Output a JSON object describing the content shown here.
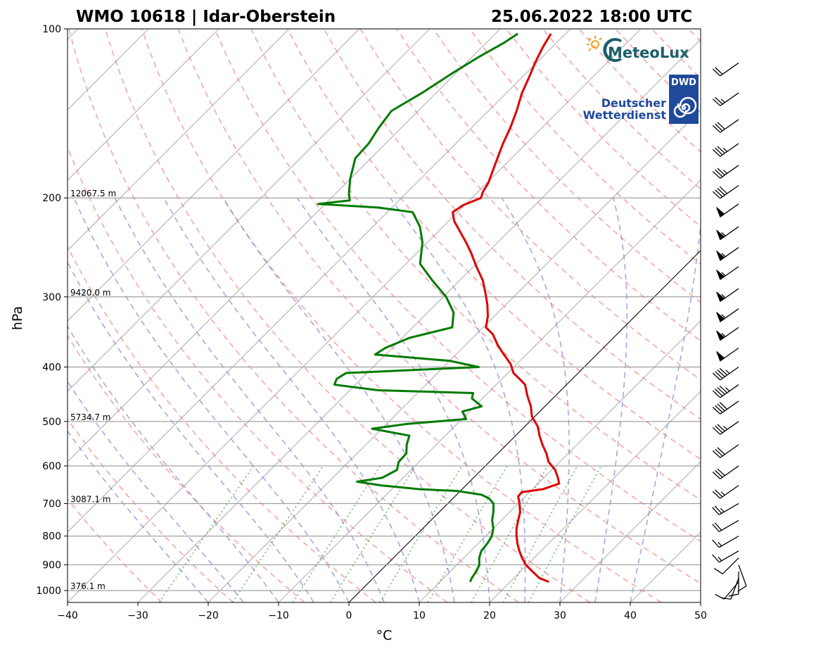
{
  "chart_data": {
    "type": "line",
    "title_left": "WMO 10618 | Idar-Oberstein",
    "title_right": "25.06.2022 18:00 UTC",
    "xlabel": "°C",
    "ylabel": "hPa",
    "xlim": [
      -40,
      50
    ],
    "ylim": [
      1050,
      100
    ],
    "x_ticks": [
      -40,
      -30,
      -20,
      -10,
      0,
      10,
      20,
      30,
      40,
      50
    ],
    "x_tick_labels": [
      "−40",
      "−30",
      "−20",
      "−10",
      "0",
      "10",
      "20",
      "30",
      "40",
      "50"
    ],
    "y_ticks": [
      100,
      200,
      300,
      400,
      500,
      600,
      700,
      800,
      900,
      1000
    ],
    "y_tick_labels": [
      "100",
      "200",
      "300",
      "400",
      "500",
      "600",
      "700",
      "800",
      "900",
      "1000"
    ],
    "skew_factor": 1.0,
    "height_labels": [
      {
        "pressure": 200,
        "text": "12067.5 m"
      },
      {
        "pressure": 300,
        "text": "9420.0 m"
      },
      {
        "pressure": 500,
        "text": "5734.7 m"
      },
      {
        "pressure": 700,
        "text": "3087.1 m"
      },
      {
        "pressure": 1000,
        "text": "376.1 m"
      }
    ],
    "reference_line_0C_isotherm": true,
    "background_lines": {
      "dry_adiabats_color": "#f08080",
      "moist_adiabats_color": "#8080e0",
      "mixing_ratio_color": "#2e9b2e",
      "isotherm_color": "#808080"
    },
    "series": [
      {
        "name": "Temperature",
        "color": "#dd0000",
        "points": [
          [
            965,
            25.5
          ],
          [
            950,
            23.6
          ],
          [
            925,
            21.7
          ],
          [
            900,
            19.8
          ],
          [
            875,
            18.3
          ],
          [
            850,
            16.9
          ],
          [
            825,
            15.6
          ],
          [
            800,
            14.4
          ],
          [
            775,
            13.3
          ],
          [
            750,
            12.4
          ],
          [
            725,
            11.5
          ],
          [
            700,
            10.2
          ],
          [
            680,
            9.0
          ],
          [
            668,
            8.9
          ],
          [
            660,
            11.5
          ],
          [
            645,
            13.0
          ],
          [
            630,
            12.0
          ],
          [
            610,
            10.5
          ],
          [
            590,
            8.4
          ],
          [
            570,
            6.9
          ],
          [
            550,
            5.1
          ],
          [
            530,
            3.4
          ],
          [
            510,
            1.8
          ],
          [
            490,
            -0.4
          ],
          [
            470,
            -2.0
          ],
          [
            450,
            -4.0
          ],
          [
            430,
            -5.9
          ],
          [
            420,
            -7.5
          ],
          [
            410,
            -9.2
          ],
          [
            395,
            -10.9
          ],
          [
            380,
            -13.2
          ],
          [
            365,
            -15.5
          ],
          [
            350,
            -17.6
          ],
          [
            340,
            -19.6
          ],
          [
            325,
            -20.9
          ],
          [
            310,
            -22.6
          ],
          [
            295,
            -24.6
          ],
          [
            280,
            -26.8
          ],
          [
            265,
            -29.6
          ],
          [
            250,
            -32.4
          ],
          [
            240,
            -34.5
          ],
          [
            230,
            -36.8
          ],
          [
            220,
            -39.2
          ],
          [
            212,
            -40.7
          ],
          [
            206,
            -40.2
          ],
          [
            200,
            -38.7
          ],
          [
            195,
            -39.3
          ],
          [
            188,
            -39.8
          ],
          [
            178,
            -41.0
          ],
          [
            170,
            -42.0
          ],
          [
            160,
            -43.3
          ],
          [
            150,
            -44.5
          ],
          [
            140,
            -46.0
          ],
          [
            130,
            -47.8
          ],
          [
            122,
            -49.0
          ],
          [
            115,
            -50.2
          ],
          [
            108,
            -51.3
          ],
          [
            102,
            -52.1
          ]
        ]
      },
      {
        "name": "Dewpoint",
        "color": "#007a00",
        "points": [
          [
            965,
            14.3
          ],
          [
            950,
            14.0
          ],
          [
            925,
            13.7
          ],
          [
            900,
            13.2
          ],
          [
            875,
            12.2
          ],
          [
            850,
            11.5
          ],
          [
            825,
            11.3
          ],
          [
            800,
            10.9
          ],
          [
            775,
            10.0
          ],
          [
            750,
            8.7
          ],
          [
            725,
            7.7
          ],
          [
            700,
            6.5
          ],
          [
            685,
            5.1
          ],
          [
            675,
            3.5
          ],
          [
            665,
            -0.4
          ],
          [
            660,
            -6.0
          ],
          [
            650,
            -12.0
          ],
          [
            640,
            -16.0
          ],
          [
            630,
            -13.0
          ],
          [
            610,
            -12.0
          ],
          [
            590,
            -12.9
          ],
          [
            570,
            -13.0
          ],
          [
            550,
            -14.2
          ],
          [
            530,
            -15.1
          ],
          [
            515,
            -21.4
          ],
          [
            505,
            -17.0
          ],
          [
            495,
            -9.4
          ],
          [
            480,
            -11.0
          ],
          [
            470,
            -9.0
          ],
          [
            455,
            -11.5
          ],
          [
            445,
            -12.1
          ],
          [
            440,
            -26.0
          ],
          [
            430,
            -33.0
          ],
          [
            420,
            -33.5
          ],
          [
            410,
            -33.0
          ],
          [
            400,
            -15.0
          ],
          [
            390,
            -20.0
          ],
          [
            380,
            -31.5
          ],
          [
            370,
            -31.0
          ],
          [
            355,
            -29.0
          ],
          [
            340,
            -24.4
          ],
          [
            320,
            -26.3
          ],
          [
            300,
            -29.6
          ],
          [
            280,
            -34.0
          ],
          [
            262,
            -38.0
          ],
          [
            240,
            -40.7
          ],
          [
            225,
            -43.3
          ],
          [
            212,
            -46.4
          ],
          [
            208,
            -52.0
          ],
          [
            205,
            -61.0
          ],
          [
            202,
            -57.0
          ],
          [
            197,
            -58.0
          ],
          [
            185,
            -60.0
          ],
          [
            170,
            -62.2
          ],
          [
            160,
            -62.4
          ],
          [
            150,
            -63.2
          ],
          [
            140,
            -63.8
          ],
          [
            130,
            -62.0
          ],
          [
            120,
            -60.5
          ],
          [
            112,
            -59.0
          ],
          [
            106,
            -57.5
          ],
          [
            102,
            -56.8
          ]
        ]
      }
    ],
    "wind_barbs": [
      {
        "pressure": 965,
        "speed_kt": 10,
        "dir": 220
      },
      {
        "pressure": 950,
        "speed_kt": 10,
        "dir": 200
      },
      {
        "pressure": 925,
        "speed_kt": 10,
        "dir": 180
      },
      {
        "pressure": 900,
        "speed_kt": 10,
        "dir": 160
      },
      {
        "pressure": 875,
        "speed_kt": 10,
        "dir": 225
      },
      {
        "pressure": 850,
        "speed_kt": 15,
        "dir": 240
      },
      {
        "pressure": 800,
        "speed_kt": 15,
        "dir": 240
      },
      {
        "pressure": 750,
        "speed_kt": 20,
        "dir": 240
      },
      {
        "pressure": 700,
        "speed_kt": 25,
        "dir": 240
      },
      {
        "pressure": 650,
        "speed_kt": 25,
        "dir": 235
      },
      {
        "pressure": 600,
        "speed_kt": 30,
        "dir": 235
      },
      {
        "pressure": 550,
        "speed_kt": 30,
        "dir": 235
      },
      {
        "pressure": 500,
        "speed_kt": 35,
        "dir": 235
      },
      {
        "pressure": 460,
        "speed_kt": 40,
        "dir": 235
      },
      {
        "pressure": 430,
        "speed_kt": 45,
        "dir": 235
      },
      {
        "pressure": 400,
        "speed_kt": 45,
        "dir": 235
      },
      {
        "pressure": 370,
        "speed_kt": 50,
        "dir": 235
      },
      {
        "pressure": 340,
        "speed_kt": 55,
        "dir": 235
      },
      {
        "pressure": 315,
        "speed_kt": 55,
        "dir": 235
      },
      {
        "pressure": 290,
        "speed_kt": 55,
        "dir": 235
      },
      {
        "pressure": 265,
        "speed_kt": 55,
        "dir": 235
      },
      {
        "pressure": 245,
        "speed_kt": 55,
        "dir": 235
      },
      {
        "pressure": 225,
        "speed_kt": 55,
        "dir": 235
      },
      {
        "pressure": 205,
        "speed_kt": 50,
        "dir": 235
      },
      {
        "pressure": 190,
        "speed_kt": 40,
        "dir": 235
      },
      {
        "pressure": 175,
        "speed_kt": 35,
        "dir": 235
      },
      {
        "pressure": 160,
        "speed_kt": 35,
        "dir": 235
      },
      {
        "pressure": 145,
        "speed_kt": 30,
        "dir": 235
      },
      {
        "pressure": 130,
        "speed_kt": 25,
        "dir": 235
      },
      {
        "pressure": 115,
        "speed_kt": 20,
        "dir": 235
      }
    ]
  },
  "logos": {
    "meteolux_name": "MeteoLux",
    "dwd_badge": "DWD",
    "dwd_line1": "Deutscher",
    "dwd_line2": "Wetterdienst"
  },
  "colors": {
    "temp": "#dd0000",
    "dew": "#007a00",
    "grid": "#a0a0a0",
    "dwd_blue": "#1f4a9c",
    "meteolux_teal": "#1b5e6b",
    "sun": "#f0a020"
  }
}
